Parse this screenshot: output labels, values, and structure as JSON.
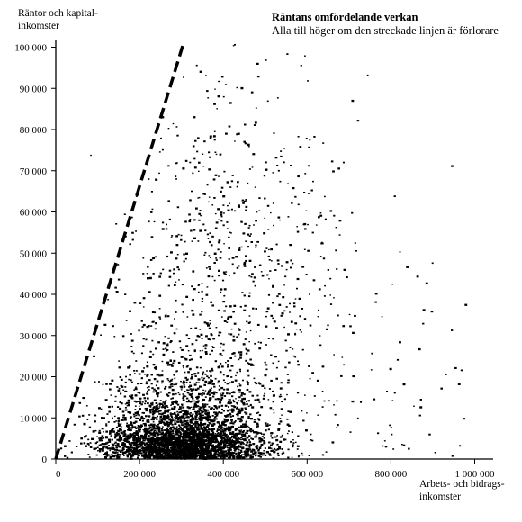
{
  "chart_data": {
    "type": "scatter",
    "title": "Räntans omfördelande verkan",
    "subtitle": "Alla till höger om den streckade linjen är förlorare",
    "ylabel": [
      "Räntor och kapital-",
      "inkomster"
    ],
    "xlabel": [
      "Arbets- och bidrags-",
      "inkomster"
    ],
    "xlim": [
      0,
      1050000
    ],
    "ylim": [
      0,
      102000
    ],
    "x_ticks": [
      0,
      200000,
      400000,
      600000,
      800000,
      1000000
    ],
    "x_tick_labels": [
      "0",
      "200 000",
      "400 000",
      "600 000",
      "800 000",
      "1 000 000"
    ],
    "y_ticks": [
      0,
      10000,
      20000,
      30000,
      40000,
      50000,
      60000,
      70000,
      80000,
      90000,
      100000
    ],
    "y_tick_labels": [
      "0",
      "10 000",
      "20 000",
      "30 000",
      "40 000",
      "50 000",
      "60 000",
      "70 000",
      "80 000",
      "90 000",
      "100 000"
    ],
    "dashed_line": {
      "x": [
        0,
        305000
      ],
      "y": [
        0,
        101000
      ],
      "style": "dashed"
    },
    "point_clusters": [
      {
        "name": "dense-core",
        "x_center": 300000,
        "y_center": 4000,
        "x_spread": 170000,
        "y_spread": 4000,
        "count": 3000
      },
      {
        "name": "main-body",
        "x_center": 310000,
        "y_center": 12000,
        "x_spread": 180000,
        "y_spread": 11000,
        "count": 1700
      },
      {
        "name": "upper-spread",
        "x_center": 400000,
        "y_center": 45000,
        "x_spread": 280000,
        "y_spread": 30000,
        "count": 800
      },
      {
        "name": "outliers",
        "x_center": 750000,
        "y_center": 20000,
        "x_spread": 200000,
        "y_spread": 25000,
        "count": 120
      }
    ],
    "grid": false,
    "legend": "none"
  }
}
